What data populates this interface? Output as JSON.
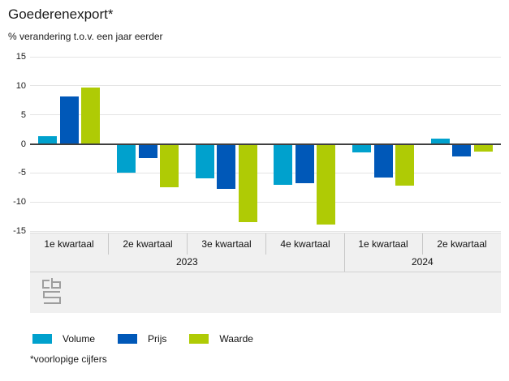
{
  "header": {
    "title": "Goederenexport*",
    "subtitle": "% verandering t.o.v. een jaar eerder"
  },
  "footnote": "*voorlopige cijfers",
  "logo": {
    "name": "cbs-logo",
    "color": "#9e9e9e"
  },
  "colors": {
    "volume": "#00a1cd",
    "prijs": "#0058b8",
    "waarde": "#afcb05",
    "zero_line": "#3f3f3f",
    "gridline": "#e4e4e4",
    "band_bg": "#f0f0f0",
    "band_border": "#c8c8c8"
  },
  "chart_data": {
    "type": "bar",
    "title": "Goederenexport*",
    "subtitle": "% verandering t.o.v. een jaar eerder",
    "ylabel": "% verandering t.o.v. een jaar eerder",
    "xlabel": "",
    "ylim": [
      -15,
      15
    ],
    "yticks": [
      15,
      10,
      5,
      0,
      -5,
      -10,
      -15
    ],
    "grid": true,
    "legend_position": "bottom",
    "categories": [
      "1e kwartaal",
      "2e kwartaal",
      "3e kwartaal",
      "4e kwartaal",
      "1e kwartaal",
      "2e kwartaal"
    ],
    "year_groups": [
      {
        "label": "2023",
        "span": 4
      },
      {
        "label": "2024",
        "span": 2
      }
    ],
    "series": [
      {
        "name": "Volume",
        "color": "#00a1cd",
        "values": [
          1.4,
          -4.9,
          -5.9,
          -7.1,
          -1.4,
          0.9
        ]
      },
      {
        "name": "Prijs",
        "color": "#0058b8",
        "values": [
          8.2,
          -2.4,
          -7.7,
          -6.7,
          -5.8,
          -2.2
        ]
      },
      {
        "name": "Waarde",
        "color": "#afcb05",
        "values": [
          9.7,
          -7.4,
          -13.4,
          -13.9,
          -7.2,
          -1.3
        ]
      }
    ]
  }
}
